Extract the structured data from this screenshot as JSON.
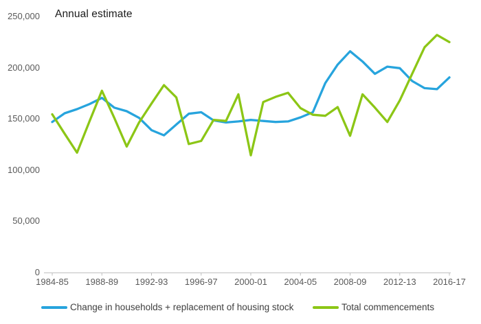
{
  "title": "Annual estimate",
  "chart_data": {
    "type": "line",
    "title": "Annual estimate",
    "categories": [
      "1984-85",
      "1985-86",
      "1986-87",
      "1987-88",
      "1988-89",
      "1989-90",
      "1990-91",
      "1991-92",
      "1992-93",
      "1993-94",
      "1994-95",
      "1995-96",
      "1996-97",
      "1997-98",
      "1998-99",
      "1999-00",
      "2000-01",
      "2001-02",
      "2002-03",
      "2003-04",
      "2004-05",
      "2005-06",
      "2006-07",
      "2007-08",
      "2008-09",
      "2009-10",
      "2010-11",
      "2011-12",
      "2012-13",
      "2013-14",
      "2014-15",
      "2015-16",
      "2016-17"
    ],
    "series": [
      {
        "name": "Change in households + replacement of housing stock",
        "color": "#27A4DD",
        "values": [
          147000,
          155500,
          159500,
          164500,
          170500,
          161000,
          157500,
          151000,
          139000,
          134000,
          144500,
          155000,
          156500,
          148500,
          146500,
          147500,
          149000,
          148000,
          147000,
          147500,
          151500,
          156500,
          185000,
          203000,
          216000,
          206000,
          194000,
          201000,
          199500,
          187000,
          180000,
          179000,
          190500
        ]
      },
      {
        "name": "Total commencements",
        "color": "#8CC616",
        "values": [
          154500,
          135500,
          117000,
          147500,
          177500,
          151000,
          123000,
          146500,
          165000,
          183000,
          171000,
          125500,
          128500,
          149000,
          148000,
          174000,
          114500,
          166500,
          171500,
          175500,
          160500,
          154000,
          153000,
          161500,
          133500,
          174000,
          161000,
          147000,
          168000,
          194000,
          220000,
          232000,
          225000
        ]
      }
    ],
    "ylim": [
      0,
      250000
    ],
    "ytick_step": 50000,
    "x_label_every": 4,
    "grid": false,
    "legend_position": "bottom",
    "axis_color": "#BFBFBF",
    "label_color": "#595959"
  },
  "legend": {
    "items": [
      {
        "label": "Change in households + replacement of housing stock"
      },
      {
        "label": "Total commencements"
      }
    ]
  }
}
